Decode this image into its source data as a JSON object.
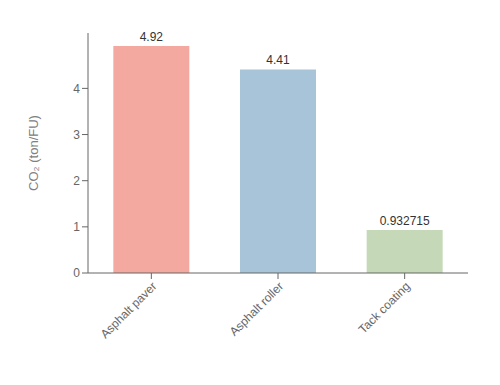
{
  "chart_data": {
    "type": "bar",
    "categories": [
      "Asphalt paver",
      "Asphalt roller",
      "Tack coating"
    ],
    "values": [
      4.92,
      4.41,
      0.932715
    ],
    "colors": [
      "#f4a9a0",
      "#a8c4d8",
      "#c5d9b8"
    ],
    "ylabel": "CO₂ (ton/FU)",
    "ylim": [
      0,
      5.2
    ],
    "yticks": [
      0,
      1,
      2,
      3,
      4
    ],
    "data_labels": true
  }
}
